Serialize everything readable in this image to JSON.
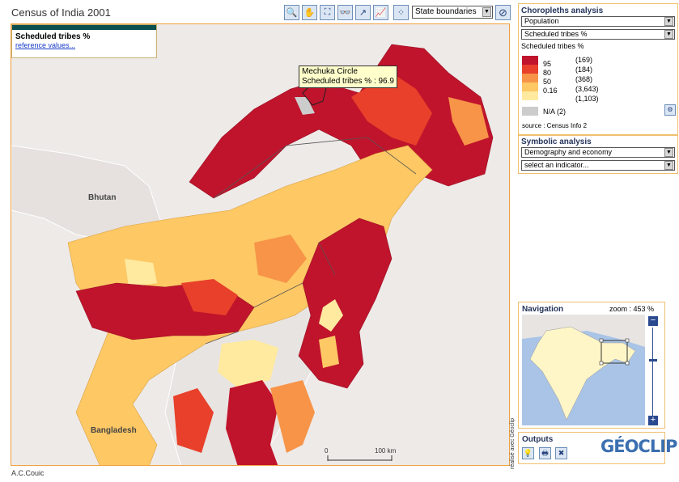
{
  "app": {
    "title": "Census of India 2001",
    "credit": "A.C.Couic",
    "vertical_credit": "réalisé avec Géoclip"
  },
  "toolbar": {
    "tools": [
      {
        "name": "zoom-in-tool",
        "glyph": "🔍"
      },
      {
        "name": "pan-tool",
        "glyph": "✋"
      },
      {
        "name": "full-extent-tool",
        "glyph": "⛶"
      },
      {
        "name": "glasses-tool",
        "glyph": "👓"
      },
      {
        "name": "measure-tool",
        "glyph": "↗"
      },
      {
        "name": "chart-tool",
        "glyph": "📈"
      },
      {
        "name": "points-tool",
        "glyph": "⁘"
      }
    ],
    "boundary_select": "State boundaries",
    "clear_icon": "no-symbol-icon"
  },
  "map": {
    "legend_title": "Scheduled tribes %",
    "legend_link": "reference values...",
    "tooltip": {
      "place": "Mechuka Circle",
      "value": "Scheduled tribes % : 96.9"
    },
    "labels": {
      "bhutan": "Bhutan",
      "bangladesh": "Bangladesh"
    },
    "scale": {
      "zero": "0",
      "km": "100 km"
    },
    "colors": {
      "c95": "#c0142c",
      "c80": "#e8402a",
      "c50": "#f79448",
      "c016": "#fec864",
      "c0": "#ffeaa0",
      "na": "#cccccc",
      "neighbor": "#eeeae8"
    }
  },
  "choropleth": {
    "header": "Choropleths analysis",
    "theme": "Population",
    "indicator": "Scheduled tribes %",
    "legend_title": "Scheduled tribes %",
    "classes": [
      {
        "value": "95",
        "count": "(169)",
        "color": "#c0142c"
      },
      {
        "value": "80",
        "count": "(184)",
        "color": "#e8402a"
      },
      {
        "value": "50",
        "count": "(368)",
        "color": "#f79448"
      },
      {
        "value": "0.16",
        "count": "(3,643)",
        "color": "#fec864"
      },
      {
        "value": "",
        "count": "(1,103)",
        "color": "#ffeaa0"
      }
    ],
    "na_label": "N/A (2)",
    "source": "source : Census Info 2"
  },
  "symbolic": {
    "header": "Symbolic analysis",
    "theme": "Demography and economy",
    "indicator": "select an indicator..."
  },
  "navigation": {
    "header": "Navigation",
    "zoom": "zoom : 453 %"
  },
  "outputs": {
    "header": "Outputs",
    "logo": "GÉOCLIP"
  }
}
